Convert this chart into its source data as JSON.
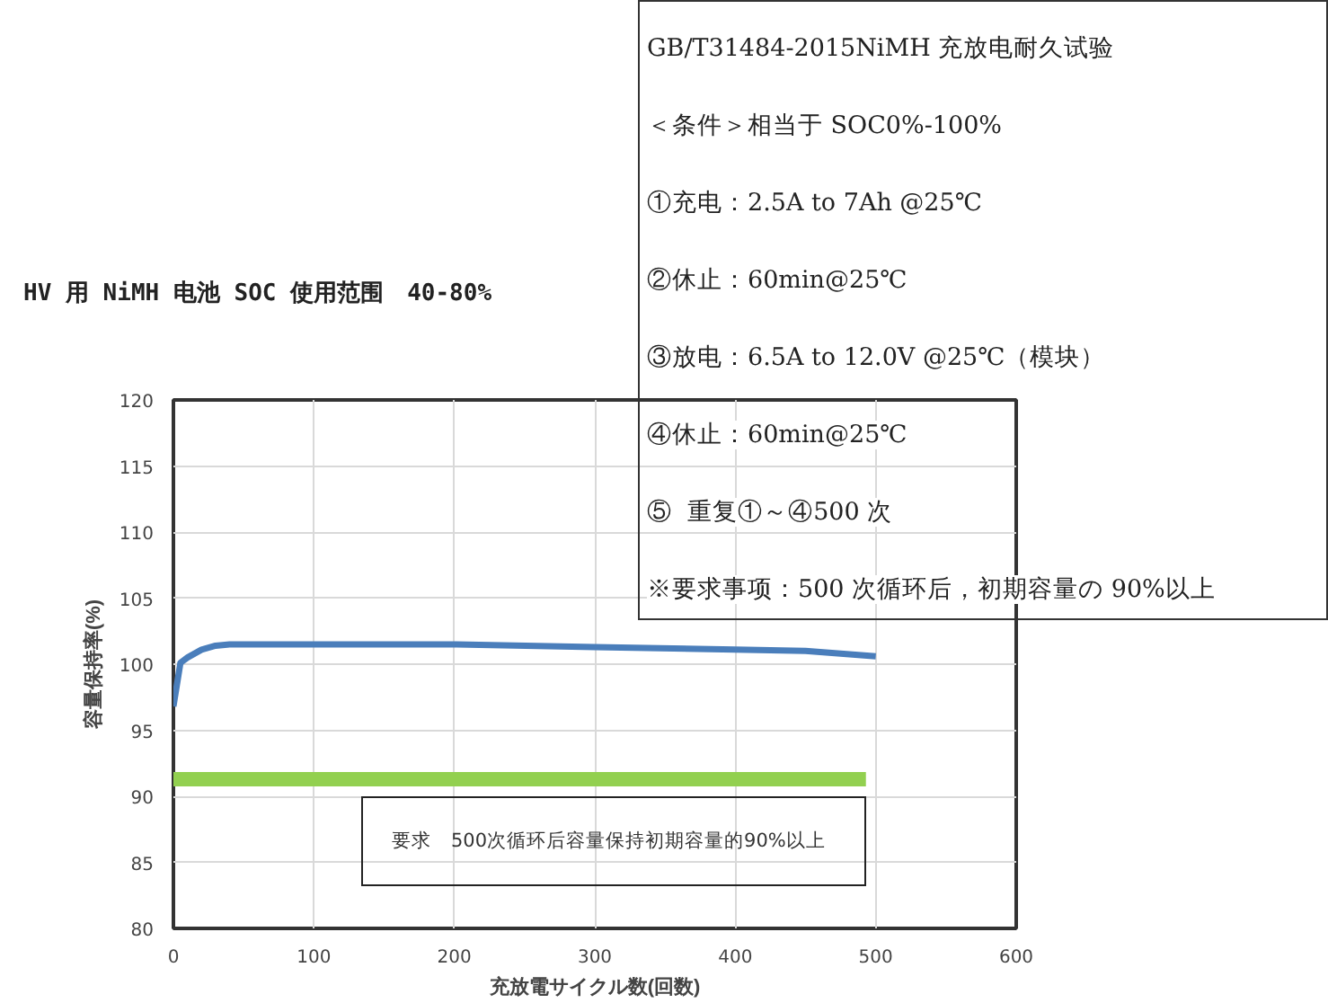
{
  "chart_data": {
    "type": "line",
    "title": "HV 用 NiMH 电池 SOC 使用范围　40-80%",
    "xlabel": "充放電サイクル数(回数)",
    "ylabel": "容量保持率(%)",
    "xlim": [
      0,
      600
    ],
    "xticks": [
      0,
      100,
      200,
      300,
      400,
      500,
      600
    ],
    "ylim": [
      80,
      120
    ],
    "yticks": [
      80,
      85,
      90,
      95,
      100,
      105,
      110,
      115,
      120
    ],
    "grid": true,
    "series": [
      {
        "color": "#4a7ebb",
        "x": [
          0,
          5,
          10,
          20,
          30,
          40,
          100,
          200,
          300,
          400,
          450,
          500
        ],
        "values": [
          96.8,
          100.1,
          100.5,
          101.1,
          101.4,
          101.5,
          101.5,
          101.5,
          101.3,
          101.1,
          101.0,
          100.6
        ]
      },
      {
        "color": "#92d050",
        "x": [
          0,
          493
        ],
        "values": [
          91.3,
          91.3
        ]
      }
    ],
    "annotations": [
      "要求　500次循环后容量保持初期容量的90%以上",
      "GB/T31484-2015NiMH 充放电耐久试验",
      "＜条件＞相当于 SOC0%-100%",
      "①充电：2.5A to 7Ah @25℃",
      "②休止：60min@25℃",
      "③放电：6.5A to 12.0V @25℃（模块）",
      "④休止：60min@25℃",
      "⑤  重复①～④500 次",
      "※要求事项：500 次循环后，初期容量の 90%以上"
    ]
  }
}
